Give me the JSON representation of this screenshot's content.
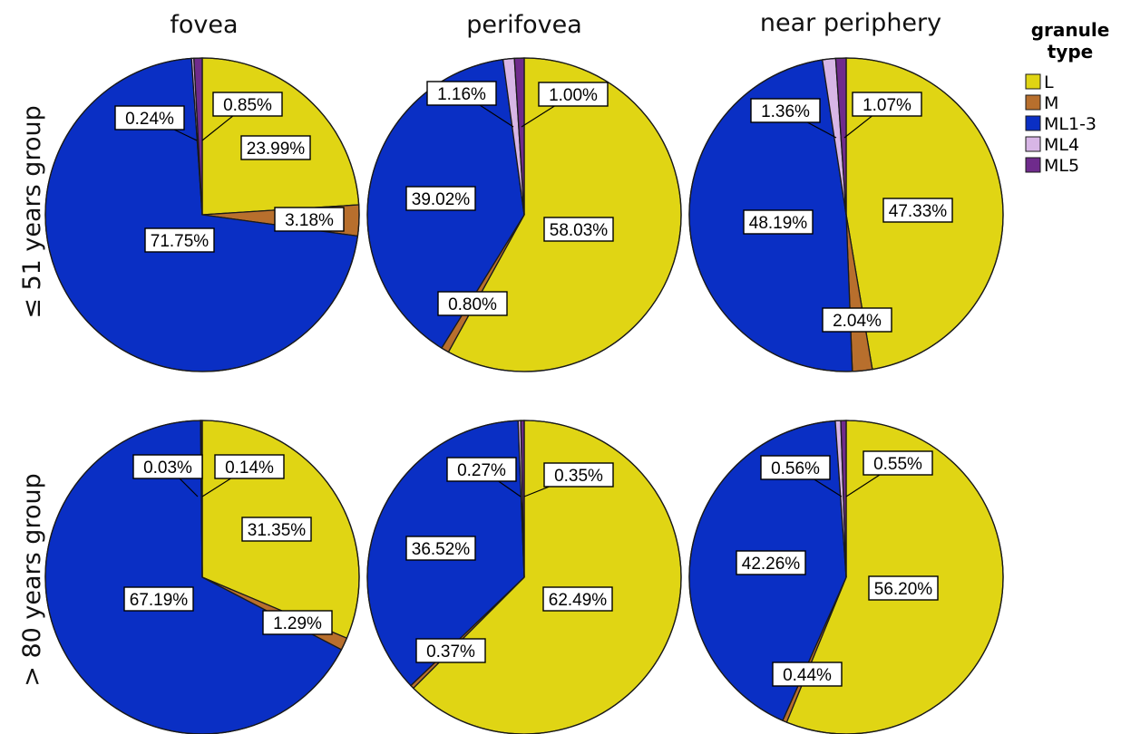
{
  "chart_data": [
    {
      "type": "pie",
      "row": "≤ 51 years group",
      "column": "fovea",
      "values": [
        23.99,
        3.18,
        71.75,
        0.24,
        0.85
      ],
      "labels": [
        "23.99%",
        "3.18%",
        "71.75%",
        "0.24%",
        "0.85%"
      ]
    },
    {
      "type": "pie",
      "row": "≤ 51 years group",
      "column": "perifovea",
      "values": [
        58.03,
        0.8,
        39.02,
        1.16,
        1.0
      ],
      "labels": [
        "58.03%",
        "0.80%",
        "39.02%",
        "1.16%",
        "1.00%"
      ]
    },
    {
      "type": "pie",
      "row": "≤ 51 years group",
      "column": "near periphery",
      "values": [
        47.33,
        2.04,
        48.19,
        1.36,
        1.07
      ],
      "labels": [
        "47.33%",
        "2.04%",
        "48.19%",
        "1.36%",
        "1.07%"
      ]
    },
    {
      "type": "pie",
      "row": "> 80 years group",
      "column": "fovea",
      "values": [
        31.35,
        1.29,
        67.19,
        0.03,
        0.14
      ],
      "labels": [
        "31.35%",
        "1.29%",
        "67.19%",
        "0.03%",
        "0.14%"
      ]
    },
    {
      "type": "pie",
      "row": "> 80 years group",
      "column": "perifovea",
      "values": [
        62.49,
        0.37,
        36.52,
        0.27,
        0.35
      ],
      "labels": [
        "62.49%",
        "0.37%",
        "36.52%",
        "0.27%",
        "0.35%"
      ]
    },
    {
      "type": "pie",
      "row": "> 80 years group",
      "column": "near periphery",
      "values": [
        56.2,
        0.44,
        42.26,
        0.56,
        0.55
      ],
      "labels": [
        "56.20%",
        "0.44%",
        "42.26%",
        "0.56%",
        "0.55%"
      ]
    }
  ],
  "columns": [
    "fovea",
    "perifovea",
    "near periphery"
  ],
  "rows": [
    "≤ 51 years group",
    "> 80 years group"
  ],
  "legend": {
    "title_line1": "granule",
    "title_line2": "type",
    "placement": "right",
    "items": [
      {
        "name": "L",
        "color": "#e0d514"
      },
      {
        "name": "M",
        "color": "#b86f2d"
      },
      {
        "name": "ML1-3",
        "color": "#0a2fc4"
      },
      {
        "name": "ML4",
        "color": "#d8b6e6"
      },
      {
        "name": "ML5",
        "color": "#6f2b8c"
      }
    ]
  }
}
